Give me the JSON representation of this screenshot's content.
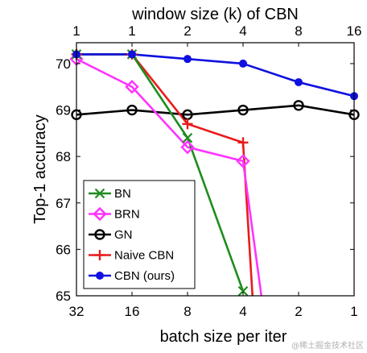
{
  "chart_data": {
    "type": "line",
    "xlabel_bottom": "batch size per iter",
    "xlabel_top": "window size (k) of CBN",
    "ylabel": "Top-1 accuracy",
    "bottom_ticks": [
      "32",
      "16",
      "8",
      "4",
      "2",
      "1"
    ],
    "top_ticks": [
      "1",
      "1",
      "2",
      "4",
      "8",
      "16"
    ],
    "yticks": [
      65,
      66,
      67,
      68,
      69,
      70
    ],
    "ylim": [
      65,
      70.45
    ],
    "grid": false,
    "legend_position": "bottom-left",
    "series": [
      {
        "name": "BN",
        "color": "#1e8c1e",
        "marker": "x",
        "x": [
          0,
          1,
          2,
          3
        ],
        "y": [
          70.2,
          70.2,
          68.4,
          65.1
        ]
      },
      {
        "name": "BRN",
        "color": "#ff33ff",
        "marker": "diamond",
        "x": [
          0,
          1,
          2,
          3,
          3.33
        ],
        "y": [
          70.1,
          69.5,
          68.2,
          67.9,
          65.0
        ]
      },
      {
        "name": "GN",
        "color": "#000000",
        "marker": "circle",
        "x": [
          0,
          1,
          2,
          3,
          4,
          5
        ],
        "y": [
          68.9,
          69.0,
          68.9,
          69.0,
          69.1,
          68.9
        ]
      },
      {
        "name": "Naive CBN",
        "color": "#e81c1c",
        "marker": "plus",
        "x": [
          0,
          1,
          2,
          3,
          3.17
        ],
        "y": [
          70.2,
          70.2,
          68.7,
          68.3,
          65.0
        ]
      },
      {
        "name": "CBN (ours)",
        "color": "#1010e0",
        "marker": "dot",
        "x": [
          0,
          1,
          2,
          3,
          4,
          5
        ],
        "y": [
          70.2,
          70.2,
          70.1,
          70.0,
          69.6,
          69.3
        ]
      }
    ]
  },
  "watermark": "@稀土掘金技术社区"
}
